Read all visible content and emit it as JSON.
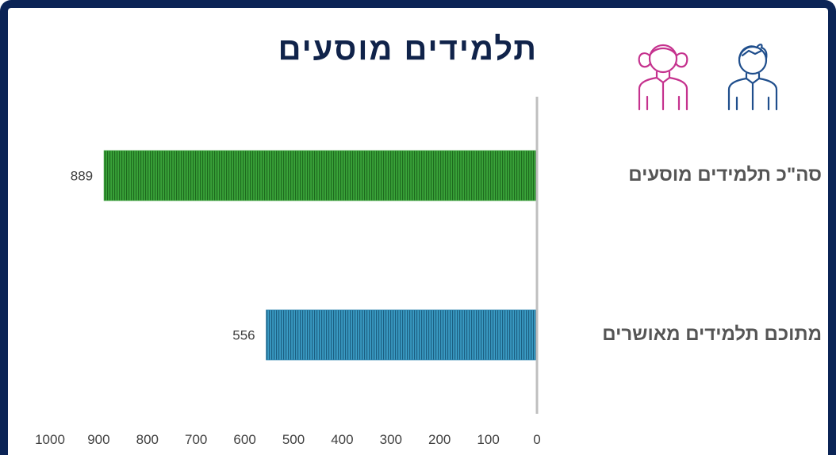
{
  "title": "תלמידים מוסעים",
  "icons": [
    "girl-outline-icon",
    "boy-outline-icon"
  ],
  "colors": {
    "frame": "#0b2456",
    "title": "#10234a",
    "girl_icon": "#c5328e",
    "boy_icon": "#1f4e8c",
    "bar_total": "#3aa33a",
    "bar_approved": "#2e86b0",
    "axis": "#bfbfbf",
    "label": "#555555"
  },
  "chart_data": {
    "type": "bar",
    "orientation": "horizontal",
    "direction": "rtl",
    "categories": [
      "סה\"כ תלמידים מוסעים",
      "מתוכם תלמידים מאושרים"
    ],
    "values": [
      889,
      556
    ],
    "data_labels": [
      "889",
      "556"
    ],
    "xlim": [
      0,
      1000
    ],
    "x_ticks": [
      "0",
      "100",
      "200",
      "300",
      "400",
      "500",
      "600",
      "700",
      "800",
      "900",
      "1000"
    ],
    "grid": false,
    "legend": "none"
  }
}
